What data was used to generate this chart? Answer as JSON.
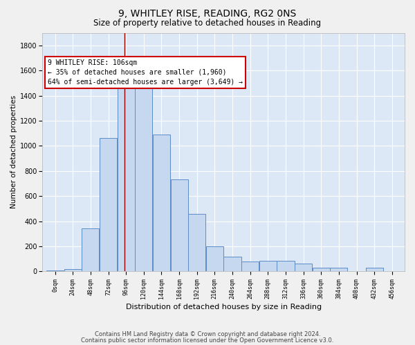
{
  "title1": "9, WHITLEY RISE, READING, RG2 0NS",
  "title2": "Size of property relative to detached houses in Reading",
  "xlabel": "Distribution of detached houses by size in Reading",
  "ylabel": "Number of detached properties",
  "bar_color": "#c5d8f0",
  "bar_edge_color": "#5b8dc8",
  "background_color": "#dce8f5",
  "grid_color": "#ffffff",
  "fig_facecolor": "#f0f0f0",
  "bins_left": [
    0,
    24,
    48,
    72,
    96,
    120,
    144,
    168,
    192,
    216,
    240,
    264,
    288,
    312,
    336,
    360,
    384,
    408,
    432,
    456
  ],
  "counts": [
    5,
    20,
    340,
    1060,
    1480,
    1480,
    1090,
    730,
    460,
    200,
    115,
    80,
    85,
    85,
    60,
    30,
    30,
    0,
    30,
    0
  ],
  "bin_width": 24,
  "property_size": 106,
  "annotation_text": "9 WHITLEY RISE: 106sqm\n← 35% of detached houses are smaller (1,960)\n64% of semi-detached houses are larger (3,649) →",
  "annotation_box_facecolor": "#ffffff",
  "annotation_box_edgecolor": "#cc0000",
  "vline_color": "#990000",
  "footer1": "Contains HM Land Registry data © Crown copyright and database right 2024.",
  "footer2": "Contains public sector information licensed under the Open Government Licence v3.0.",
  "ylim": [
    0,
    1900
  ],
  "yticks": [
    0,
    200,
    400,
    600,
    800,
    1000,
    1200,
    1400,
    1600,
    1800
  ],
  "title1_fontsize": 10,
  "title2_fontsize": 8.5,
  "xlabel_fontsize": 8,
  "ylabel_fontsize": 7.5,
  "xtick_fontsize": 6,
  "ytick_fontsize": 7,
  "footer_fontsize": 6,
  "annot_fontsize": 7
}
